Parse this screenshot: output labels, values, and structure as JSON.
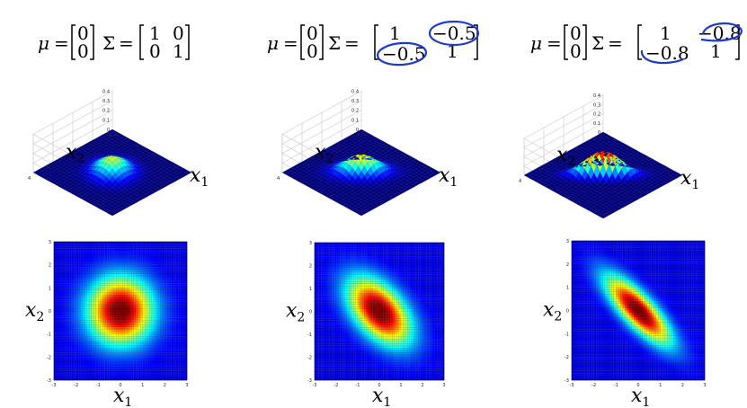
{
  "panels": [
    {
      "mu_symbol": "μ",
      "sigma_symbol": "Σ",
      "equals": "=",
      "mu": [
        "0",
        "0"
      ],
      "sigma": [
        [
          "1",
          "0"
        ],
        [
          "0",
          "1"
        ]
      ],
      "circled": false,
      "cov": 0,
      "peak": 0.16,
      "z_ticks": [
        "0",
        "0.1",
        "0.2",
        "0.3",
        "0.4"
      ],
      "surf_x1_ticks": [
        "-4",
        "-2",
        "0",
        "2",
        "4"
      ],
      "surf_x2_ticks": [
        "4",
        "2",
        "0",
        "-2",
        "-4"
      ],
      "heat_ticks": [
        "-3",
        "-2",
        "-1",
        "0",
        "1",
        "2",
        "3"
      ],
      "heat_yticks": [
        "3",
        "2",
        "1",
        "0",
        "-1",
        "-2",
        "-3"
      ],
      "x1_label": "x",
      "x1_sub": "1",
      "x2_label": "x",
      "x2_sub": "2"
    },
    {
      "mu_symbol": "μ",
      "sigma_symbol": "Σ",
      "equals": "=",
      "mu": [
        "0",
        "0"
      ],
      "sigma": [
        [
          "1",
          "−0.5"
        ],
        [
          "−0.5",
          "1"
        ]
      ],
      "circled": true,
      "cov": -0.5,
      "peak": 0.18,
      "z_ticks": [
        "0",
        "0.1",
        "0.2",
        "0.3",
        "0.4"
      ],
      "surf_x1_ticks": [
        "-4",
        "-2",
        "0",
        "2",
        "4"
      ],
      "surf_x2_ticks": [
        "4",
        "2",
        "0",
        "-2",
        "-4"
      ],
      "heat_ticks": [
        "-3",
        "-2",
        "-1",
        "0",
        "1",
        "2",
        "3"
      ],
      "heat_yticks": [
        "3",
        "2",
        "1",
        "0",
        "-1",
        "-2",
        "-3"
      ],
      "x1_label": "x",
      "x1_sub": "1",
      "x2_label": "x",
      "x2_sub": "2"
    },
    {
      "mu_symbol": "μ",
      "sigma_symbol": "Σ",
      "equals": "=",
      "mu": [
        "0",
        "0"
      ],
      "sigma": [
        [
          "1",
          "−0.8"
        ],
        [
          "−0.8",
          "1"
        ]
      ],
      "circled": true,
      "cov": -0.8,
      "peak": 0.27,
      "z_ticks": [
        "0",
        "0.1",
        "0.2",
        "0.3",
        "0.4"
      ],
      "surf_x1_ticks": [
        "-4",
        "-2",
        "0",
        "2",
        "4"
      ],
      "surf_x2_ticks": [
        "4",
        "2",
        "0",
        "-2",
        "-4"
      ],
      "heat_ticks": [
        "-3",
        "-2",
        "-1",
        "0",
        "1",
        "2",
        "3"
      ],
      "heat_yticks": [
        "3",
        "2",
        "1",
        "0",
        "-1",
        "-2",
        "-3"
      ],
      "x1_label": "x",
      "x1_sub": "1",
      "x2_label": "x",
      "x2_sub": "2"
    }
  ],
  "colors": {
    "annotation": "#1f3ac8",
    "grid": "#cfcfcf",
    "floor": "#0a0a3a"
  }
}
